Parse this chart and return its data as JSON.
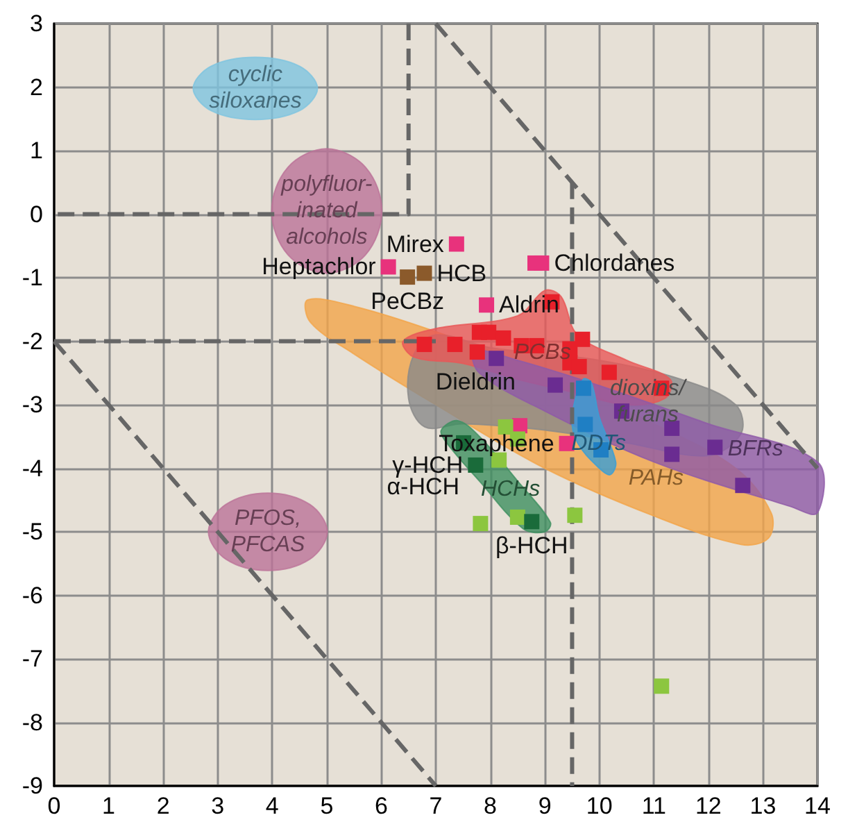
{
  "chart_data": {
    "type": "scatter",
    "xlim": [
      0,
      14
    ],
    "ylim": [
      -9,
      3
    ],
    "xticks": [
      0,
      1,
      2,
      3,
      4,
      5,
      6,
      7,
      8,
      9,
      10,
      11,
      12,
      13,
      14
    ],
    "yticks": [
      -9,
      -8,
      -7,
      -6,
      -5,
      -4,
      -3,
      -2,
      -1,
      0,
      1,
      2,
      3
    ],
    "grid": true,
    "legend": false,
    "series": [
      {
        "type": "area",
        "name": "PAHs",
        "color": "#f2a54a",
        "x": [
          4.65,
          5.5,
          7,
          9,
          11,
          12.5,
          13.15,
          13.1,
          12.6,
          11,
          9,
          7,
          5.5,
          4.7
        ],
        "values": [
          -1.35,
          -1.45,
          -1.85,
          -2.5,
          -3.3,
          -4.0,
          -4.7,
          -5.1,
          -5.2,
          -4.75,
          -4.0,
          -3.0,
          -2.2,
          -1.7
        ]
      },
      {
        "type": "area",
        "name": "dioxins/\nfurans",
        "color": "#8a8a8a",
        "x": [
          6.5,
          6.6,
          7,
          8,
          10,
          11.5,
          12.5,
          12.6,
          12,
          10.5,
          9,
          7.5,
          6.8
        ],
        "values": [
          -2.9,
          -2.2,
          -1.9,
          -2.1,
          -2.3,
          -2.6,
          -3.0,
          -3.45,
          -3.8,
          -3.6,
          -3.4,
          -3.3,
          -3.35
        ]
      },
      {
        "type": "area",
        "name": "PCBs",
        "color": "#e85757",
        "x": [
          6.4,
          7,
          8.5,
          9,
          9.3,
          9.6,
          10.5,
          11.3,
          11.2,
          10.5,
          9.5,
          8.5,
          7.5,
          6.6
        ],
        "values": [
          -2.0,
          -1.8,
          -1.6,
          -1.2,
          -1.3,
          -1.9,
          -2.3,
          -2.6,
          -2.9,
          -3.0,
          -2.8,
          -2.6,
          -2.35,
          -2.25
        ]
      },
      {
        "type": "area",
        "name": "BFRs",
        "color": "#8e5aa8",
        "x": [
          7.7,
          8.5,
          10,
          12,
          14,
          14,
          13.5,
          11,
          9,
          7.8
        ],
        "values": [
          -2.15,
          -2.3,
          -2.7,
          -3.3,
          -3.9,
          -4.7,
          -4.6,
          -3.9,
          -3.1,
          -2.5
        ]
      },
      {
        "type": "area",
        "name": "DDTs",
        "color": "#3a9fd6",
        "x": [
          9.5,
          9.7,
          9.85,
          10,
          10.3,
          10.2,
          10,
          9.6
        ],
        "values": [
          -3.2,
          -2.6,
          -2.65,
          -3.2,
          -3.9,
          -4.1,
          -4.0,
          -3.6
        ]
      },
      {
        "type": "area",
        "name": "HCHs",
        "color": "#3f9060",
        "x": [
          7.1,
          7.4,
          7.8,
          8.5,
          9.1,
          9,
          8.6,
          7.8,
          7.2
        ],
        "values": [
          -3.4,
          -3.25,
          -3.5,
          -4.2,
          -4.85,
          -5.0,
          -4.95,
          -4.2,
          -3.6
        ]
      },
      {
        "type": "area",
        "name": "cyclic\nsiloxanes",
        "color": "#7ec4e0",
        "x": [
          4.83,
          4.5,
          3.69,
          2.88,
          2.55,
          2.88,
          3.69,
          4.5
        ],
        "values": [
          1.98,
          2.33,
          2.47,
          2.33,
          1.98,
          1.63,
          1.49,
          1.63
        ]
      },
      {
        "type": "area",
        "name": "polyfluor-\ninated\nalcohols",
        "color": "#bb7399",
        "x": [
          6.01,
          5.71,
          5.0,
          4.29,
          3.99,
          4.29,
          5.0,
          5.71
        ],
        "values": [
          0.05,
          0.74,
          1.03,
          0.74,
          0.05,
          -0.64,
          -0.93,
          -0.64
        ]
      },
      {
        "type": "area",
        "name": "PFOS,\nPFCAS",
        "color": "#bb7399",
        "x": [
          5.01,
          4.69,
          3.92,
          3.15,
          2.83,
          3.15,
          3.92,
          4.69
        ],
        "values": [
          -5,
          -4.57,
          -4.39,
          -4.57,
          -5,
          -5.43,
          -5.61,
          -5.43
        ]
      },
      {
        "type": "line",
        "color": "#666666",
        "line_style": "dashed",
        "marker": "none",
        "x": [
          9.5,
          9.5
        ],
        "values": [
          0.5,
          -9
        ]
      },
      {
        "type": "line",
        "color": "#666666",
        "line_style": "dashed",
        "marker": "none",
        "x": [
          6.5,
          6.5,
          0
        ],
        "values": [
          3,
          0,
          0
        ]
      },
      {
        "type": "line",
        "color": "#666666",
        "line_style": "dashed",
        "marker": "none",
        "x": [
          0,
          7
        ],
        "values": [
          -2,
          -2
        ]
      },
      {
        "type": "line",
        "color": "#666666",
        "line_style": "dashed",
        "marker": "none",
        "x": [
          0,
          7
        ],
        "values": [
          -2,
          -9
        ]
      },
      {
        "type": "line",
        "color": "#666666",
        "line_style": "dashed",
        "marker": "none",
        "x": [
          7,
          14
        ],
        "values": [
          3,
          -4
        ]
      },
      {
        "marker": "square",
        "color": "#e8327c",
        "x": [
          6.13,
          7.38,
          8.82,
          8.94,
          7.93,
          8.54,
          9.4
        ],
        "values": [
          -0.83,
          -0.47,
          -0.77,
          -0.77,
          -1.43,
          -3.33,
          -3.61
        ]
      },
      {
        "marker": "square",
        "color": "#8b5a2b",
        "x": [
          6.48,
          6.79
        ],
        "values": [
          -0.99,
          -0.93
        ]
      },
      {
        "marker": "square",
        "color": "#e8202a",
        "x": [
          6.79,
          7.35,
          7.76,
          7.8,
          7.97,
          8.24,
          8.57,
          8.85,
          9.13,
          9.46,
          9.69,
          9.46,
          9.63,
          10.18,
          11.14
        ],
        "values": [
          -2.05,
          -2.05,
          -2.17,
          -1.86,
          -1.86,
          -1.95,
          -2.07,
          -2.07,
          -1.38,
          -2.12,
          -1.97,
          -2.34,
          -2.4,
          -2.49,
          -2.74
        ]
      },
      {
        "marker": "square",
        "color": "#6a2c91",
        "x": [
          8.11,
          9.19,
          10.41,
          11.33,
          11.33,
          12.12,
          12.63
        ],
        "values": [
          -2.27,
          -2.69,
          -3.1,
          -3.37,
          -3.78,
          -3.67,
          -4.27
        ]
      },
      {
        "marker": "square",
        "color": "#1f7fc4",
        "x": [
          9.71,
          9.74,
          10.03
        ],
        "values": [
          -2.74,
          -3.31,
          -3.71
        ]
      },
      {
        "marker": "square",
        "color": "#8cc63f",
        "x": [
          8.28,
          8.5,
          8.16,
          7.82,
          8.5,
          9.55,
          11.14
        ],
        "values": [
          -3.35,
          -3.54,
          -3.87,
          -4.87,
          -4.77,
          -4.74,
          -7.43
        ]
      },
      {
        "marker": "square",
        "color": "#1a6b3a",
        "x": [
          7.51,
          7.73,
          8.76
        ],
        "values": [
          -3.6,
          -3.95,
          -4.84
        ]
      }
    ],
    "annotations": [
      {
        "text": "Heptachlor",
        "x": 6.13,
        "y": -0.83
      },
      {
        "text": "Mirex",
        "x": 7.38,
        "y": -0.47
      },
      {
        "text": "HCB",
        "x": 6.79,
        "y": -0.93
      },
      {
        "text": "PeCBz",
        "x": 6.48,
        "y": -0.99
      },
      {
        "text": "Chlordanes",
        "x": 8.94,
        "y": -0.77
      },
      {
        "text": "Aldrin",
        "x": 7.93,
        "y": -1.43
      },
      {
        "text": "Dieldrin",
        "x": 8.54,
        "y": -3.33
      },
      {
        "text": "Toxaphene",
        "x": 9.4,
        "y": -3.61
      },
      {
        "text": "α-HCH",
        "x": 7.51,
        "y": -3.6
      },
      {
        "text": "γ-HCH",
        "x": 7.73,
        "y": -3.95
      },
      {
        "text": "β-HCH",
        "x": 8.76,
        "y": -4.84
      }
    ]
  }
}
